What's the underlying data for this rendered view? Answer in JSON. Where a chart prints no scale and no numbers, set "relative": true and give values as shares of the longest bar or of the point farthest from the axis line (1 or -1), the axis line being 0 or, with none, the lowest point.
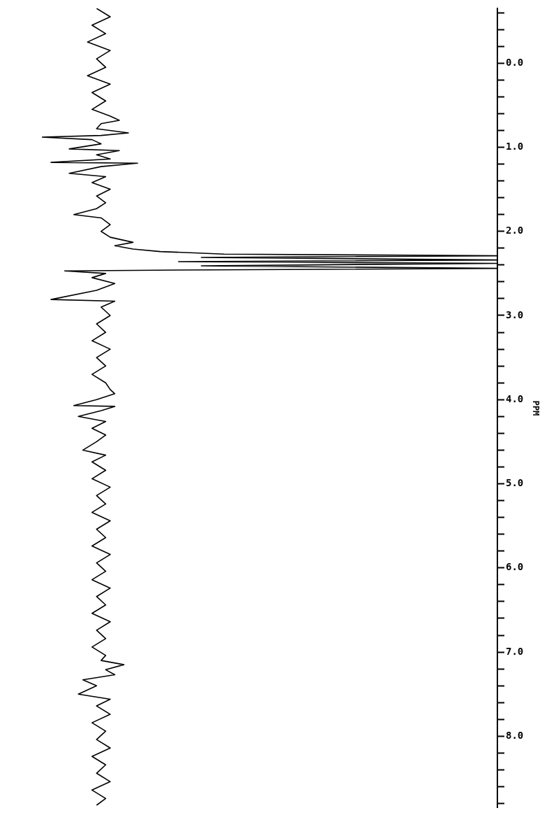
{
  "chart_data": {
    "type": "line",
    "relative": true,
    "orientation": "horizontal",
    "ylabel": "PPM",
    "ylim": [
      8.85,
      -0.65
    ],
    "yticks": [
      {
        "value": -0.6,
        "label": null
      },
      {
        "value": -0.4,
        "label": null
      },
      {
        "value": -0.2,
        "label": null
      },
      {
        "value": 0,
        "label": "0.0"
      },
      {
        "value": 0.2,
        "label": null
      },
      {
        "value": 0.4,
        "label": null
      },
      {
        "value": 0.6,
        "label": null
      },
      {
        "value": 0.8,
        "label": null
      },
      {
        "value": 1,
        "label": "1.0"
      },
      {
        "value": 1.2,
        "label": null
      },
      {
        "value": 1.4,
        "label": null
      },
      {
        "value": 1.6,
        "label": null
      },
      {
        "value": 1.8,
        "label": null
      },
      {
        "value": 2,
        "label": "2.0"
      },
      {
        "value": 2.2,
        "label": null
      },
      {
        "value": 2.4,
        "label": null
      },
      {
        "value": 2.6,
        "label": null
      },
      {
        "value": 2.8,
        "label": null
      },
      {
        "value": 3,
        "label": "3.0"
      },
      {
        "value": 3.2,
        "label": null
      },
      {
        "value": 3.4,
        "label": null
      },
      {
        "value": 3.6,
        "label": null
      },
      {
        "value": 3.8,
        "label": null
      },
      {
        "value": 4,
        "label": "4.0"
      },
      {
        "value": 4.2,
        "label": null
      },
      {
        "value": 4.4,
        "label": null
      },
      {
        "value": 4.6,
        "label": null
      },
      {
        "value": 4.8,
        "label": null
      },
      {
        "value": 5,
        "label": "5.0"
      },
      {
        "value": 5.2,
        "label": null
      },
      {
        "value": 5.4,
        "label": null
      },
      {
        "value": 5.6,
        "label": null
      },
      {
        "value": 5.8,
        "label": null
      },
      {
        "value": 6,
        "label": "6.0"
      },
      {
        "value": 6.2,
        "label": null
      },
      {
        "value": 6.4,
        "label": null
      },
      {
        "value": 6.6,
        "label": null
      },
      {
        "value": 6.8,
        "label": null
      },
      {
        "value": 7,
        "label": "7.0"
      },
      {
        "value": 7.2,
        "label": null
      },
      {
        "value": 7.4,
        "label": null
      },
      {
        "value": 7.6,
        "label": null
      },
      {
        "value": 7.8,
        "label": null
      },
      {
        "value": 8,
        "label": "8.0"
      },
      {
        "value": 8.2,
        "label": null
      },
      {
        "value": 8.4,
        "label": null
      },
      {
        "value": 8.6,
        "label": null
      },
      {
        "value": 8.8,
        "label": null
      }
    ],
    "grid": false,
    "legend": false,
    "x": [
      -0.65,
      -0.55,
      -0.45,
      -0.35,
      -0.25,
      -0.15,
      -0.05,
      0.05,
      0.15,
      0.25,
      0.35,
      0.45,
      0.55,
      0.63,
      0.68,
      0.72,
      0.78,
      0.83,
      0.86,
      0.88,
      0.91,
      0.96,
      1.02,
      1.04,
      1.09,
      1.14,
      1.18,
      1.19,
      1.23,
      1.31,
      1.35,
      1.42,
      1.5,
      1.58,
      1.66,
      1.73,
      1.8,
      1.84,
      1.92,
      2.0,
      2.07,
      2.13,
      2.17,
      2.21,
      2.24,
      2.27,
      2.29,
      2.31,
      2.34,
      2.36,
      2.38,
      2.41,
      2.44,
      2.46,
      2.47,
      2.5,
      2.55,
      2.62,
      2.7,
      2.81,
      2.83,
      2.9,
      3.0,
      3.1,
      3.2,
      3.3,
      3.4,
      3.5,
      3.6,
      3.7,
      3.8,
      3.88,
      3.93,
      4.0,
      4.07,
      4.08,
      4.13,
      4.2,
      4.26,
      4.34,
      4.42,
      4.5,
      4.6,
      4.66,
      4.74,
      4.84,
      4.94,
      5.04,
      5.14,
      5.24,
      5.34,
      5.44,
      5.54,
      5.64,
      5.74,
      5.84,
      5.94,
      6.04,
      6.14,
      6.24,
      6.34,
      6.44,
      6.54,
      6.64,
      6.74,
      6.84,
      6.94,
      7.04,
      7.1,
      7.15,
      7.21,
      7.27,
      7.33,
      7.4,
      7.5,
      7.56,
      7.64,
      7.74,
      7.84,
      7.94,
      8.04,
      8.14,
      8.24,
      8.34,
      8.44,
      8.54,
      8.64,
      8.74,
      8.82
    ],
    "series": [
      {
        "color": "#000000",
        "values": [
          0.12,
          0.15,
          0.11,
          0.14,
          0.1,
          0.15,
          0.12,
          0.14,
          0.1,
          0.15,
          0.11,
          0.14,
          0.11,
          0.15,
          0.17,
          0.13,
          0.12,
          0.19,
          0.13,
          0.0,
          0.11,
          0.13,
          0.06,
          0.17,
          0.12,
          0.15,
          0.02,
          0.21,
          0.13,
          0.06,
          0.14,
          0.11,
          0.15,
          0.12,
          0.14,
          0.12,
          0.07,
          0.13,
          0.15,
          0.13,
          0.15,
          0.2,
          0.16,
          0.2,
          0.26,
          0.4,
          1.0,
          0.35,
          1.0,
          0.3,
          1.0,
          0.35,
          1.0,
          0.3,
          0.05,
          0.14,
          0.11,
          0.16,
          0.12,
          0.02,
          0.16,
          0.13,
          0.15,
          0.12,
          0.14,
          0.11,
          0.15,
          0.12,
          0.14,
          0.11,
          0.14,
          0.15,
          0.16,
          0.12,
          0.07,
          0.16,
          0.13,
          0.08,
          0.14,
          0.11,
          0.14,
          0.12,
          0.09,
          0.14,
          0.11,
          0.14,
          0.11,
          0.15,
          0.12,
          0.14,
          0.11,
          0.15,
          0.12,
          0.14,
          0.11,
          0.15,
          0.12,
          0.14,
          0.11,
          0.15,
          0.12,
          0.14,
          0.11,
          0.15,
          0.12,
          0.14,
          0.11,
          0.14,
          0.13,
          0.18,
          0.14,
          0.16,
          0.09,
          0.12,
          0.08,
          0.15,
          0.12,
          0.15,
          0.11,
          0.14,
          0.12,
          0.15,
          0.11,
          0.14,
          0.12,
          0.15,
          0.11,
          0.14,
          0.12
        ]
      }
    ]
  }
}
